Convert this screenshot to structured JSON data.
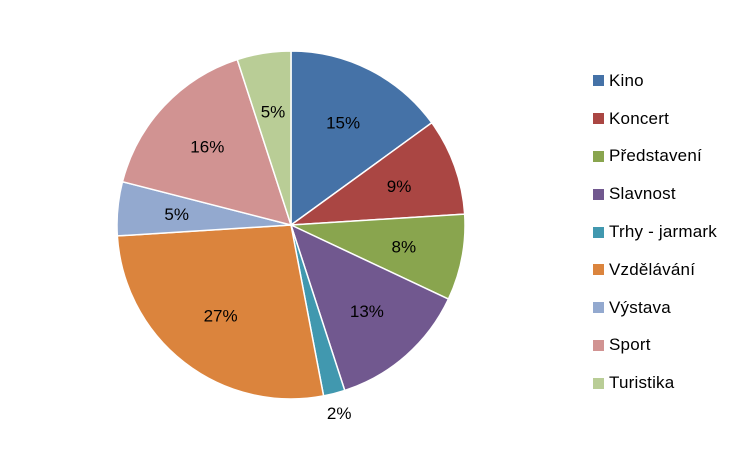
{
  "chart_data": {
    "type": "pie",
    "title": "",
    "legend_position": "right",
    "start_angle_deg": 0,
    "direction": "clockwise",
    "slices": [
      {
        "label": "Kino",
        "value": 15,
        "display": "15%",
        "color": "#4572A7"
      },
      {
        "label": "Koncert",
        "value": 9,
        "display": "9%",
        "color": "#AA4643"
      },
      {
        "label": "Představení",
        "value": 8,
        "display": "8%",
        "color": "#89A54E"
      },
      {
        "label": "Slavnost",
        "value": 13,
        "display": "13%",
        "color": "#71588F"
      },
      {
        "label": "Trhy - jarmark",
        "value": 2,
        "display": "2%",
        "color": "#4198AF"
      },
      {
        "label": "Vzdělávání",
        "value": 27,
        "display": "27%",
        "color": "#DB843D"
      },
      {
        "label": "Výstava",
        "value": 5,
        "display": "5%",
        "color": "#93A9CF"
      },
      {
        "label": "Sport",
        "value": 16,
        "display": "16%",
        "color": "#D19392"
      },
      {
        "label": "Turistika",
        "value": 5,
        "display": "5%",
        "color": "#B9CD96"
      }
    ]
  }
}
